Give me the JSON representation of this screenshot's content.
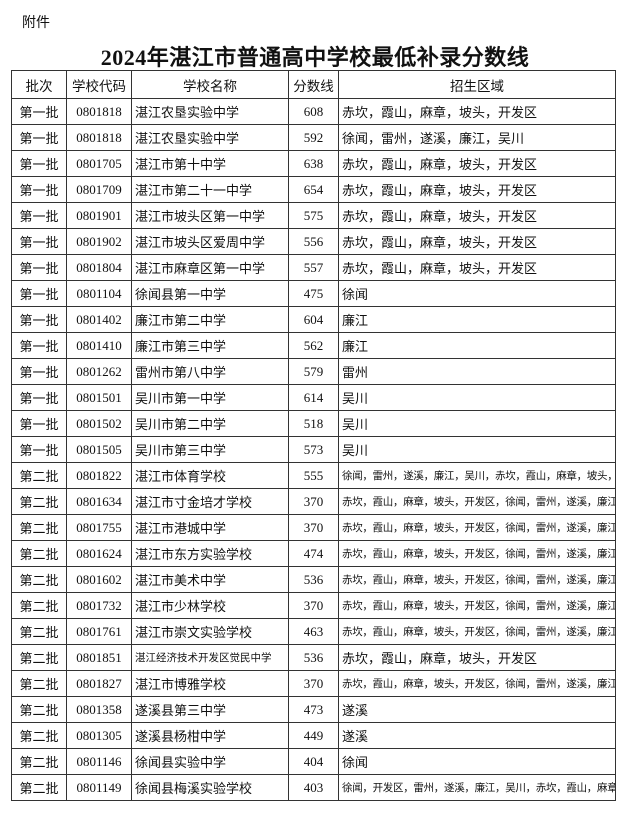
{
  "attachment_label": "附件",
  "title": "2024年湛江市普通高中学校最低补录分数线",
  "table": {
    "headers": [
      "批次",
      "学校代码",
      "学校名称",
      "分数线",
      "招生区域"
    ],
    "rows": [
      {
        "batch": "第一批",
        "code": "0801818",
        "name": "湛江农垦实验中学",
        "score": "608",
        "area": "赤坎，霞山，麻章，坡头，开发区"
      },
      {
        "batch": "第一批",
        "code": "0801818",
        "name": "湛江农垦实验中学",
        "score": "592",
        "area": "徐闻，雷州，遂溪，廉江，吴川"
      },
      {
        "batch": "第一批",
        "code": "0801705",
        "name": "湛江市第十中学",
        "score": "638",
        "area": "赤坎，霞山，麻章，坡头，开发区"
      },
      {
        "batch": "第一批",
        "code": "0801709",
        "name": "湛江市第二十一中学",
        "score": "654",
        "area": "赤坎，霞山，麻章，坡头，开发区"
      },
      {
        "batch": "第一批",
        "code": "0801901",
        "name": "湛江市坡头区第一中学",
        "score": "575",
        "area": "赤坎，霞山，麻章，坡头，开发区"
      },
      {
        "batch": "第一批",
        "code": "0801902",
        "name": "湛江市坡头区爱周中学",
        "score": "556",
        "area": "赤坎，霞山，麻章，坡头，开发区"
      },
      {
        "batch": "第一批",
        "code": "0801804",
        "name": "湛江市麻章区第一中学",
        "score": "557",
        "area": "赤坎，霞山，麻章，坡头，开发区"
      },
      {
        "batch": "第一批",
        "code": "0801104",
        "name": "徐闻县第一中学",
        "score": "475",
        "area": "徐闻"
      },
      {
        "batch": "第一批",
        "code": "0801402",
        "name": "廉江市第二中学",
        "score": "604",
        "area": "廉江"
      },
      {
        "batch": "第一批",
        "code": "0801410",
        "name": "廉江市第三中学",
        "score": "562",
        "area": "廉江"
      },
      {
        "batch": "第一批",
        "code": "0801262",
        "name": "雷州市第八中学",
        "score": "579",
        "area": "雷州"
      },
      {
        "batch": "第一批",
        "code": "0801501",
        "name": "吴川市第一中学",
        "score": "614",
        "area": "吴川"
      },
      {
        "batch": "第一批",
        "code": "0801502",
        "name": "吴川市第二中学",
        "score": "518",
        "area": "吴川"
      },
      {
        "batch": "第一批",
        "code": "0801505",
        "name": "吴川市第三中学",
        "score": "573",
        "area": "吴川"
      },
      {
        "batch": "第二批",
        "code": "0801822",
        "name": "湛江市体育学校",
        "score": "555",
        "area": "徐闻，雷州，遂溪，廉江，吴川，赤坎，霞山，麻章，坡头，开发区"
      },
      {
        "batch": "第二批",
        "code": "0801634",
        "name": "湛江市寸金培才学校",
        "score": "370",
        "area": "赤坎，霞山，麻章，坡头，开发区，徐闻，雷州，遂溪，廉江，吴川"
      },
      {
        "batch": "第二批",
        "code": "0801755",
        "name": "湛江市港城中学",
        "score": "370",
        "area": "赤坎，霞山，麻章，坡头，开发区，徐闻，雷州，遂溪，廉江，吴川"
      },
      {
        "batch": "第二批",
        "code": "0801624",
        "name": "湛江市东方实验学校",
        "score": "474",
        "area": "赤坎，霞山，麻章，坡头，开发区，徐闻，雷州，遂溪，廉江，吴川"
      },
      {
        "batch": "第二批",
        "code": "0801602",
        "name": "湛江市美术中学",
        "score": "536",
        "area": "赤坎，霞山，麻章，坡头，开发区，徐闻，雷州，遂溪，廉江，吴川"
      },
      {
        "batch": "第二批",
        "code": "0801732",
        "name": "湛江市少林学校",
        "score": "370",
        "area": "赤坎，霞山，麻章，坡头，开发区，徐闻，雷州，遂溪，廉江，吴川"
      },
      {
        "batch": "第二批",
        "code": "0801761",
        "name": "湛江市崇文实验学校",
        "score": "463",
        "area": "赤坎，霞山，麻章，坡头，开发区，徐闻，雷州，遂溪，廉江，吴川"
      },
      {
        "batch": "第二批",
        "code": "0801851",
        "name": "湛江经济技术开发区觉民中学",
        "score": "536",
        "area": "赤坎，霞山，麻章，坡头，开发区"
      },
      {
        "batch": "第二批",
        "code": "0801827",
        "name": "湛江市博雅学校",
        "score": "370",
        "area": "赤坎，霞山，麻章，坡头，开发区，徐闻，雷州，遂溪，廉江，吴川"
      },
      {
        "batch": "第二批",
        "code": "0801358",
        "name": "遂溪县第三中学",
        "score": "473",
        "area": "遂溪"
      },
      {
        "batch": "第二批",
        "code": "0801305",
        "name": "遂溪县杨柑中学",
        "score": "449",
        "area": "遂溪"
      },
      {
        "batch": "第二批",
        "code": "0801146",
        "name": "徐闻县实验中学",
        "score": "404",
        "area": "徐闻"
      },
      {
        "batch": "第二批",
        "code": "0801149",
        "name": "徐闻县梅溪实验学校",
        "score": "403",
        "area": "徐闻，开发区，雷州，遂溪，廉江，吴川，赤坎，霞山，麻章，坡头"
      }
    ]
  }
}
